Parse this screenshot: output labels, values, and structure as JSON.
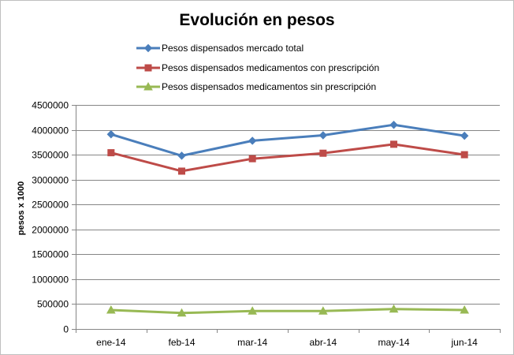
{
  "chart_data": {
    "type": "line",
    "title": "Evolución en pesos",
    "xlabel": "",
    "ylabel": "pesos x 1000",
    "categories": [
      "ene-14",
      "feb-14",
      "mar-14",
      "abr-14",
      "may-14",
      "jun-14"
    ],
    "ylim": [
      0,
      4500000
    ],
    "yticks": [
      0,
      500000,
      1000000,
      1500000,
      2000000,
      2500000,
      3000000,
      3500000,
      4000000,
      4500000
    ],
    "ytick_labels": [
      "0",
      "500000",
      "1000000",
      "1500000",
      "2000000",
      "2500000",
      "3000000",
      "3500000",
      "4000000",
      "4500000"
    ],
    "grid": "horizontal",
    "legend_position": "top",
    "series": [
      {
        "name": "Pesos dispensados mercado total",
        "color": "#4a7ebb",
        "marker": "diamond",
        "values": [
          3910000,
          3480000,
          3780000,
          3890000,
          4100000,
          3880000
        ]
      },
      {
        "name": "Pesos dispensados medicamentos con prescripción",
        "color": "#be4b48",
        "marker": "square",
        "values": [
          3540000,
          3170000,
          3420000,
          3530000,
          3710000,
          3500000
        ]
      },
      {
        "name": "Pesos dispensados medicamentos sin prescripción",
        "color": "#98b954",
        "marker": "triangle",
        "values": [
          380000,
          320000,
          360000,
          360000,
          400000,
          380000
        ]
      }
    ]
  }
}
